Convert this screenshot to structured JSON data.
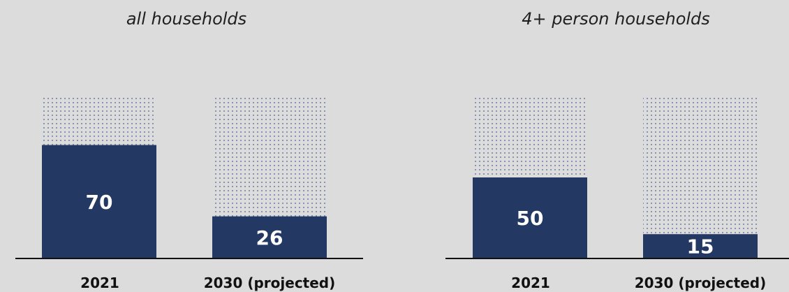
{
  "colors": {
    "background": "#dcdcdc",
    "bar_fill": "#233862",
    "dot_pattern": "#4b5f8f",
    "axis": "#111111",
    "value_text": "#ffffff",
    "label_text": "#111111"
  },
  "chart_data": [
    {
      "type": "bar",
      "title": "all households",
      "categories": [
        "2021",
        "2030 (projected)"
      ],
      "values": [
        70,
        26
      ],
      "ylim": [
        0,
        100
      ],
      "stacked_background": true,
      "grid": false
    },
    {
      "type": "bar",
      "title": "4+ person households",
      "categories": [
        "2021",
        "2030 (projected)"
      ],
      "values": [
        50,
        15
      ],
      "ylim": [
        0,
        100
      ],
      "stacked_background": true,
      "grid": false
    }
  ]
}
